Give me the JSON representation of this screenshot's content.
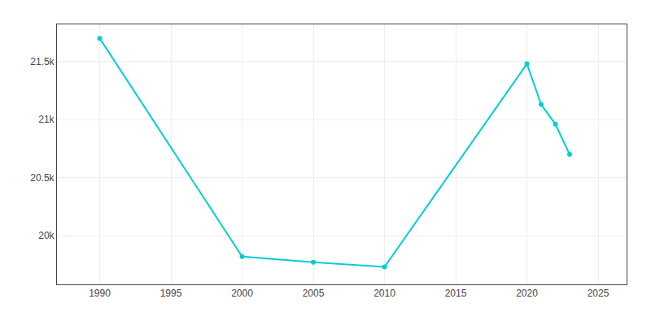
{
  "chart_data": {
    "type": "line",
    "x": [
      1990,
      2000,
      2005,
      2010,
      2020,
      2021,
      2022,
      2023
    ],
    "values": [
      21700,
      19820,
      19770,
      19730,
      21480,
      21130,
      20960,
      20700
    ],
    "color": "#00CED1",
    "marker": "circle",
    "xlim": [
      1987,
      2027
    ],
    "xticks": [
      1990,
      1995,
      2000,
      2005,
      2010,
      2015,
      2020,
      2025
    ],
    "ylim": [
      19580,
      21820
    ],
    "yticks": [
      {
        "value": 20000,
        "label": "20k"
      },
      {
        "value": 20500,
        "label": "20.5k"
      },
      {
        "value": 21000,
        "label": "21k"
      },
      {
        "value": 21500,
        "label": "21.5k"
      }
    ],
    "grid": true
  }
}
